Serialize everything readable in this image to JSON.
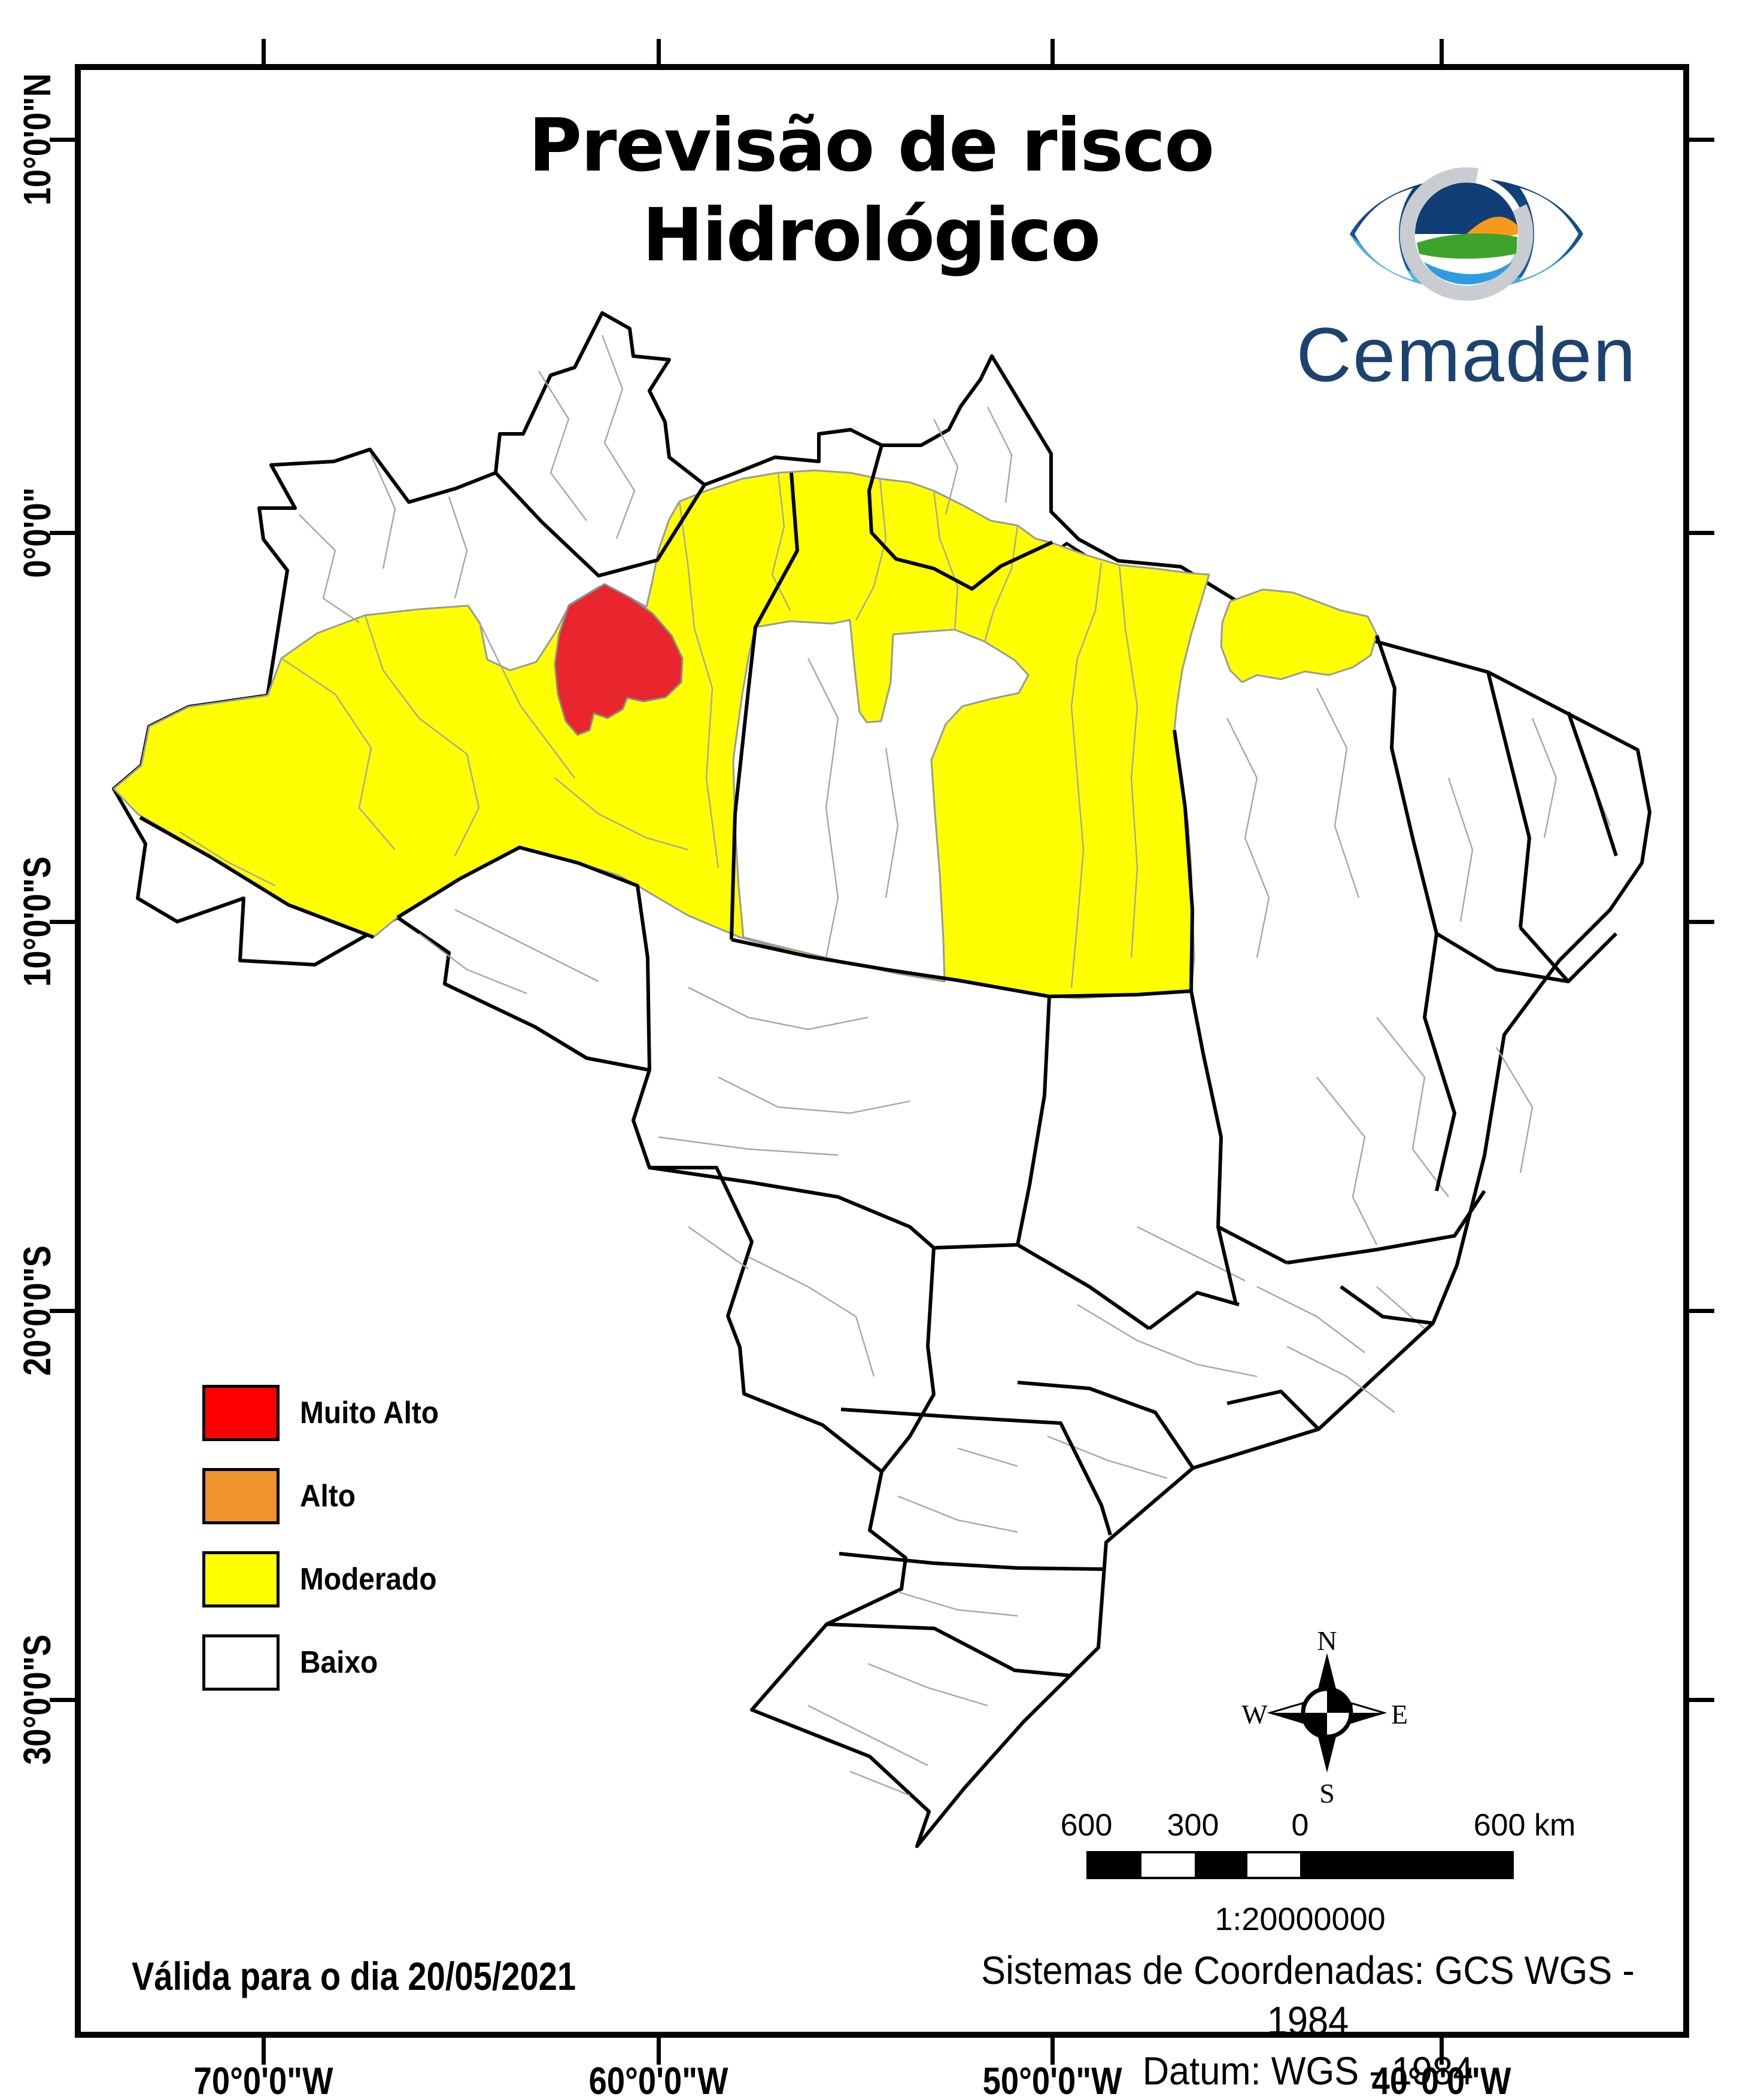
{
  "title": {
    "line1": "Previsão de risco",
    "line2": "Hidrológico"
  },
  "logo": {
    "brand": "Cemaden"
  },
  "legend": {
    "items": [
      {
        "key": "muito_alto",
        "label": "Muito Alto",
        "color": "#fe0000"
      },
      {
        "key": "alto",
        "label": "Alto",
        "color": "#f0932c"
      },
      {
        "key": "moderado",
        "label": "Moderado",
        "color": "#ffff00"
      },
      {
        "key": "baixo",
        "label": "Baixo",
        "color": "#ffffff"
      }
    ]
  },
  "map": {
    "region_colors": {
      "muito_alto": "#e9252d",
      "moderado": "#ffff00",
      "baixo": "#ffffff"
    },
    "state_border_color": "#000000",
    "subdivision_color": "#a6a6a6"
  },
  "axes": {
    "lat_labels": [
      "10°0'0\"N",
      "0°0'0\"",
      "10°0'0\"S",
      "20°0'0\"S",
      "30°0'0\"S"
    ],
    "lon_labels": [
      "70°0'0\"W",
      "60°0'0\"W",
      "50°0'0\"W",
      "40°0'0\"W"
    ]
  },
  "compass": {
    "north": "N",
    "east": "E",
    "south": "S",
    "west": "W"
  },
  "scalebar": {
    "tick_labels": [
      "600",
      "300",
      "0",
      "600 km"
    ],
    "scale_text": "1:20000000"
  },
  "footer": {
    "validity": "Válida para o dia 20/05/2021",
    "coord_system": "Sistemas de Coordenadas: GCS WGS - 1984",
    "datum": "Datum: WGS - 1984"
  }
}
